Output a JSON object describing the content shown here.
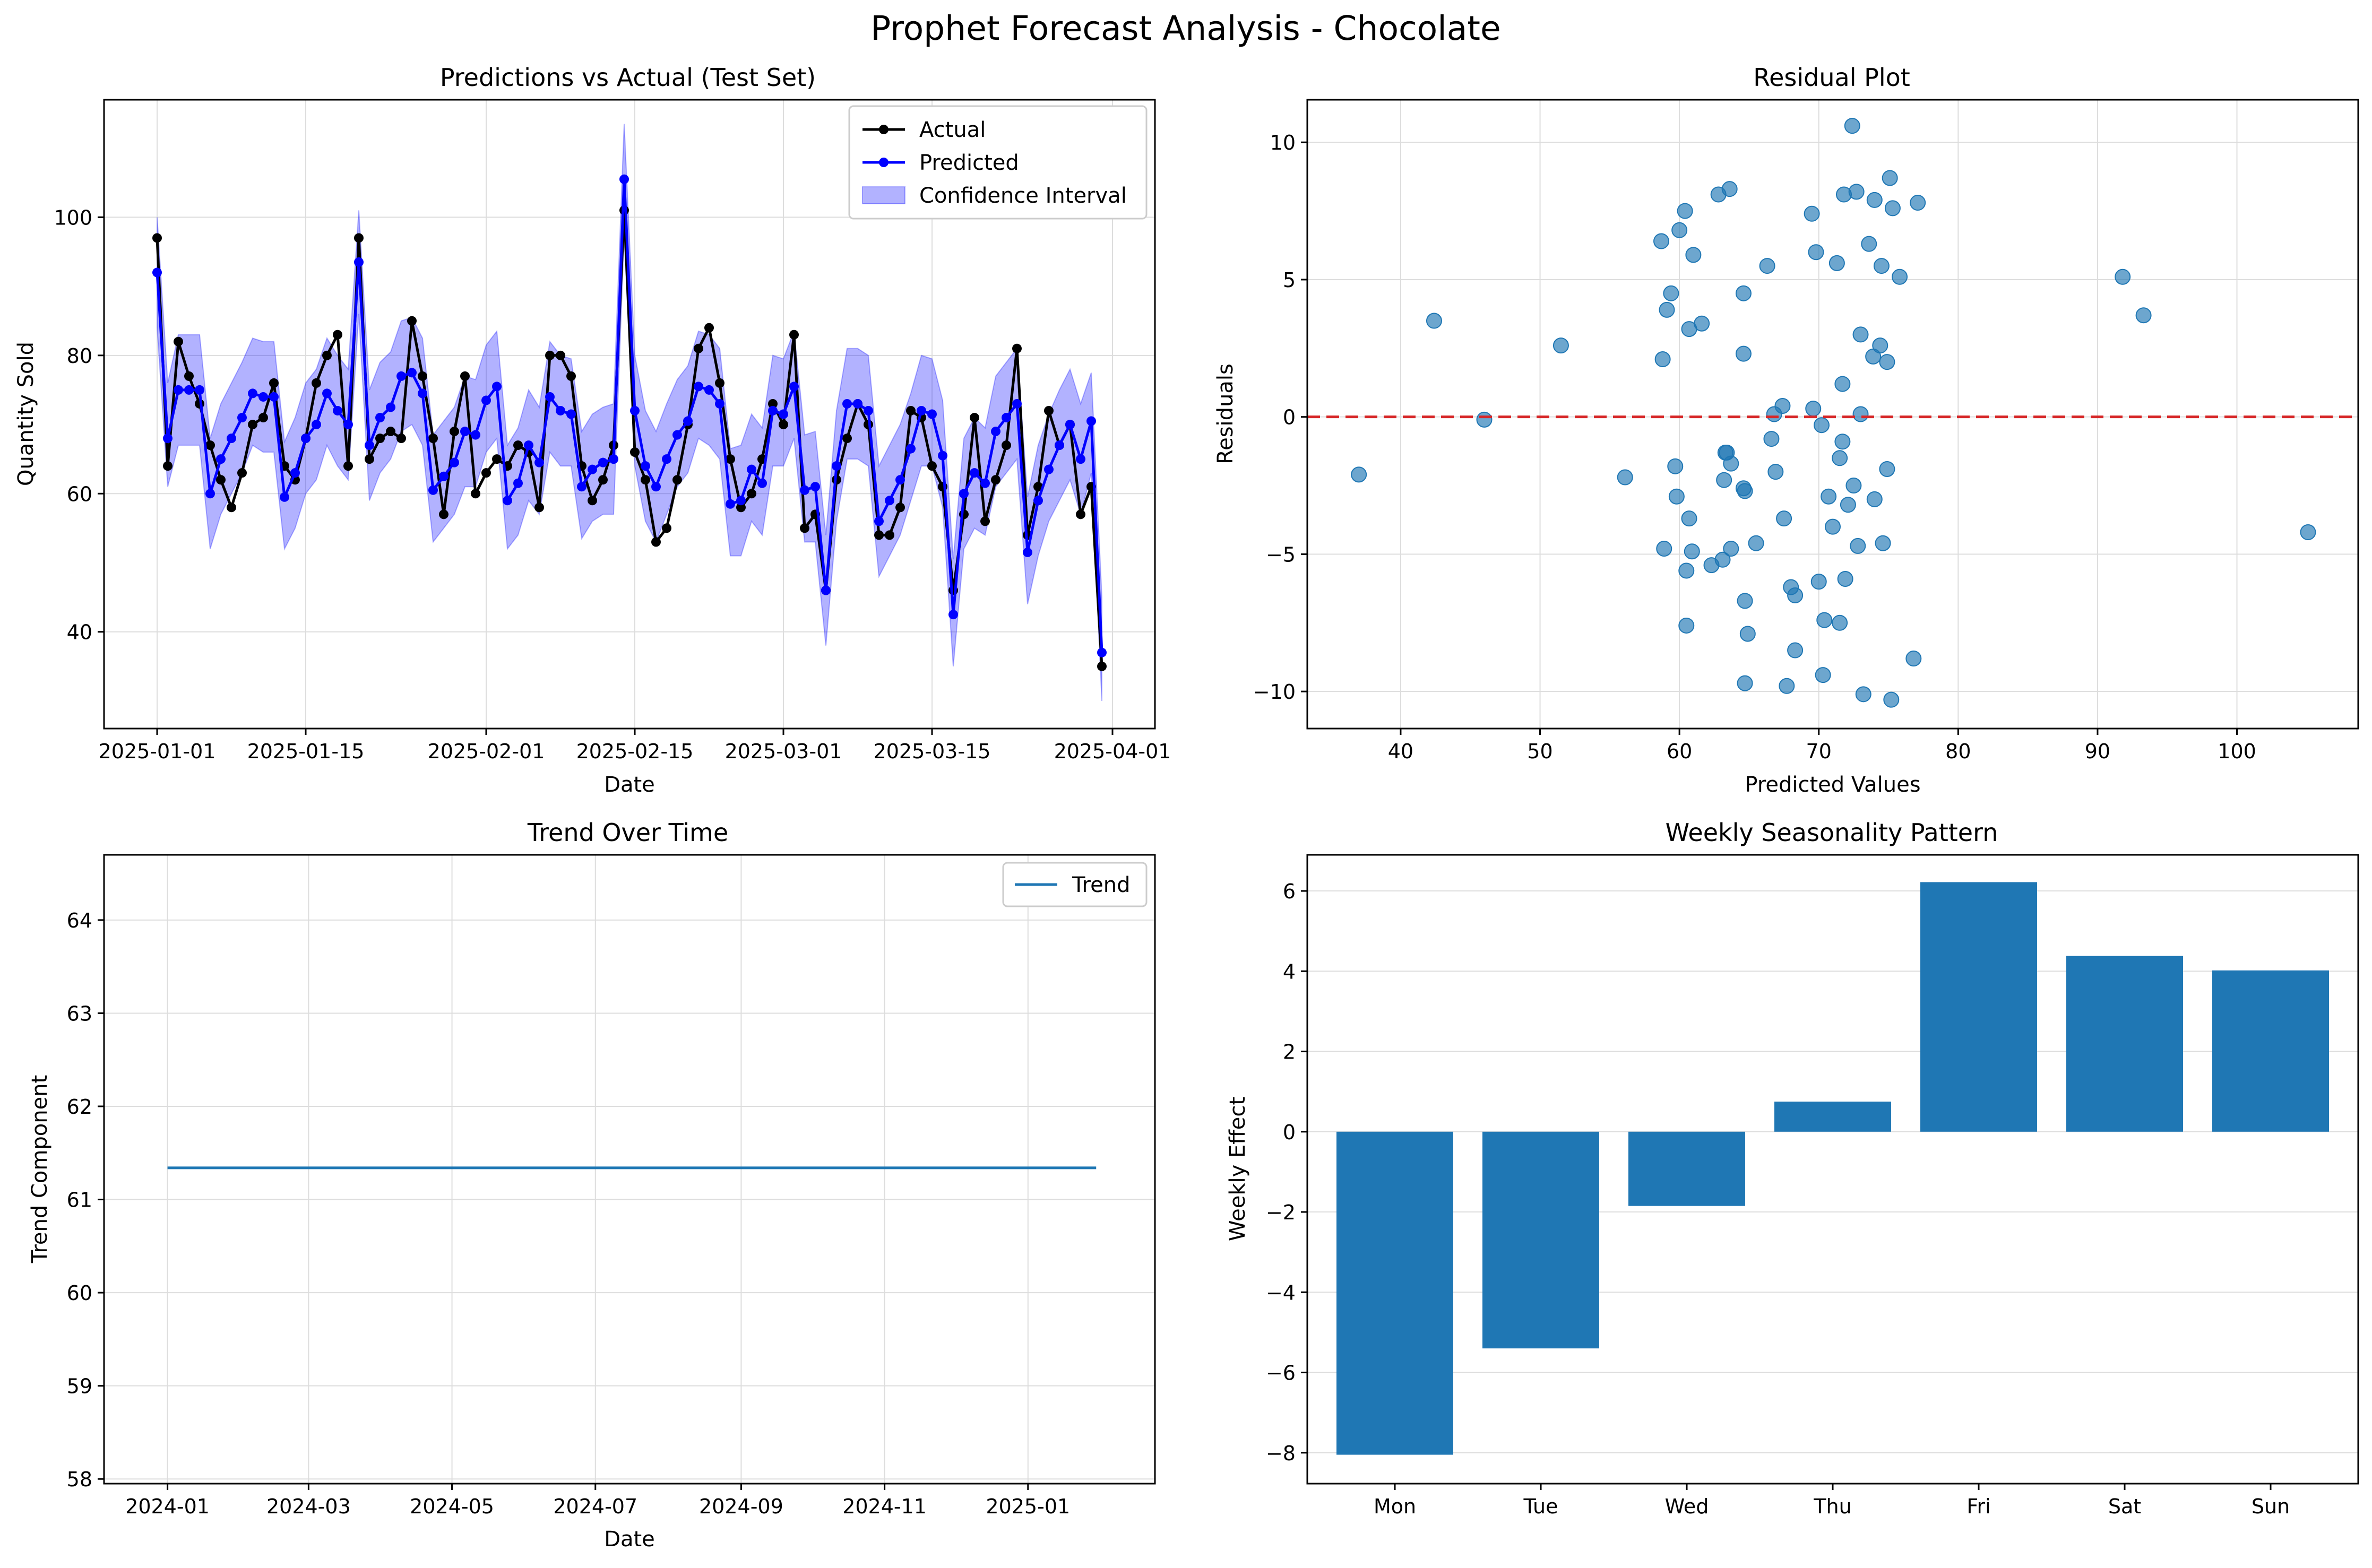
{
  "title": "Prophet Forecast Analysis - Chocolate",
  "colors": {
    "actual": "#000000",
    "predicted": "#0000ff",
    "ci_fill": "#0000ff",
    "scatter": "#1f77b4",
    "zero_line": "#d62728",
    "trend": "#1f77b4",
    "bar": "#1f77b4",
    "grid": "#dddddd"
  },
  "chart_data": [
    {
      "id": "pred",
      "type": "line",
      "title": "Predictions vs Actual (Test Set)",
      "xlabel": "Date",
      "ylabel": "Quantity Sold",
      "x_start": "2025-01-01",
      "x_ticks": [
        "2025-01-01",
        "2025-01-15",
        "2025-02-01",
        "2025-02-15",
        "2025-03-01",
        "2025-03-15",
        "2025-04-01"
      ],
      "y_ticks": [
        40,
        60,
        80,
        100
      ],
      "ylim": [
        26,
        117
      ],
      "xlim": [
        "2024-12-27",
        "2025-04-05"
      ],
      "grid": true,
      "legend": {
        "position": "top-right",
        "entries": [
          "Actual",
          "Predicted",
          "Confidence Interval"
        ]
      },
      "series": [
        {
          "name": "Actual",
          "values": [
            97,
            64,
            82,
            77,
            73,
            67,
            62,
            58,
            63,
            70,
            71,
            76,
            64,
            62,
            68,
            76,
            80,
            83,
            64,
            97,
            65,
            68,
            69,
            68,
            85,
            77,
            68,
            57,
            69,
            77,
            60,
            63,
            65,
            64,
            67,
            66,
            58,
            80,
            80,
            77,
            64,
            59,
            62,
            67,
            101,
            66,
            62,
            53,
            55,
            62,
            70,
            81,
            84,
            76,
            65,
            58,
            60,
            65,
            73,
            70,
            83,
            55,
            57,
            46,
            62,
            68,
            73,
            70,
            54,
            54,
            58,
            72,
            71,
            64,
            61,
            46,
            57,
            71,
            56,
            62,
            67,
            81,
            54,
            61,
            72,
            67,
            70,
            57,
            61,
            35
          ]
        },
        {
          "name": "Predicted",
          "values": [
            92,
            68,
            75,
            75,
            75,
            60,
            65,
            68,
            71,
            74.5,
            74,
            74,
            59.5,
            63,
            68,
            70,
            74.5,
            72,
            70,
            93.5,
            67,
            71,
            72.5,
            77,
            77.5,
            74.5,
            60.5,
            62.5,
            64.5,
            69,
            68.5,
            73.5,
            75.5,
            59,
            61.5,
            67,
            64.5,
            74,
            72,
            71.5,
            61,
            63.5,
            64.5,
            65,
            105.5,
            72,
            64,
            61,
            65,
            68.5,
            70.5,
            75.5,
            75,
            73,
            58.5,
            59,
            63.5,
            61.5,
            72,
            71.5,
            75.5,
            60.5,
            61,
            46,
            64,
            73,
            73,
            72,
            56,
            59,
            62,
            66.5,
            72,
            71.5,
            65.5,
            42.5,
            60,
            63,
            61.5,
            69,
            71,
            73,
            51.5,
            59,
            63.5,
            67,
            70,
            65,
            70.5,
            37
          ]
        },
        {
          "name": "Confidence Interval",
          "lower": [
            84,
            61,
            67,
            67,
            67,
            52,
            57,
            60,
            63,
            67,
            66,
            66,
            52,
            55,
            60,
            62,
            67,
            64,
            62,
            86,
            59,
            63,
            65,
            69,
            70,
            67,
            53,
            55,
            57,
            61,
            61,
            66,
            68,
            52,
            54,
            59,
            57,
            66,
            64,
            64,
            53.5,
            56,
            57,
            57,
            97.5,
            64,
            56,
            53,
            57,
            61,
            63,
            68,
            67,
            65,
            51,
            51,
            56,
            54,
            64,
            64,
            68,
            53,
            53,
            38,
            56,
            65,
            65,
            64,
            48,
            51,
            54,
            59,
            64,
            64,
            58,
            35,
            52,
            55,
            54,
            61,
            63,
            65,
            44,
            51,
            56,
            59,
            62,
            57,
            63,
            30
          ],
          "upper": [
            100,
            76,
            83,
            83,
            83,
            68,
            73,
            76,
            79,
            82.5,
            82,
            82,
            67.5,
            71,
            76,
            78,
            82.5,
            80,
            78,
            101,
            75,
            79,
            80.5,
            85,
            85.5,
            82.5,
            68.5,
            70.5,
            72.5,
            77,
            76.5,
            81.5,
            83.5,
            67,
            69.5,
            75,
            72.5,
            82,
            80,
            79.5,
            69,
            71.5,
            72.5,
            73,
            113.5,
            80,
            72,
            69,
            73,
            76.5,
            78.5,
            83.5,
            83,
            81,
            66.5,
            67,
            71.5,
            69.5,
            80,
            79.5,
            83.5,
            68.5,
            69,
            54,
            72,
            81,
            81,
            80,
            64,
            67,
            70,
            74.5,
            80,
            79.5,
            73.5,
            50.5,
            68,
            71,
            69.5,
            77,
            79,
            81,
            59.5,
            67,
            71.5,
            75,
            78,
            73,
            77.5,
            45
          ]
        }
      ]
    },
    {
      "id": "resid",
      "type": "scatter",
      "title": "Residual Plot",
      "xlabel": "Predicted Values",
      "ylabel": "Residuals",
      "xlim": [
        33.3,
        108.7
      ],
      "ylim": [
        -11.35,
        11.55
      ],
      "x_ticks": [
        40,
        50,
        60,
        70,
        80,
        90,
        100
      ],
      "y_ticks": [
        -10,
        -5,
        0,
        5,
        10
      ],
      "grid": true,
      "reference_line": 0,
      "points": [
        [
          37,
          -2.1
        ],
        [
          42.4,
          3.5
        ],
        [
          46,
          -0.1
        ],
        [
          51.5,
          2.6
        ],
        [
          56.1,
          -2.2
        ],
        [
          58.7,
          6.4
        ],
        [
          58.8,
          2.1
        ],
        [
          58.9,
          -4.8
        ],
        [
          59.1,
          3.9
        ],
        [
          59.4,
          4.5
        ],
        [
          59.7,
          -1.8
        ],
        [
          59.8,
          -2.9
        ],
        [
          60,
          6.8
        ],
        [
          60.4,
          7.5
        ],
        [
          60.5,
          -7.6
        ],
        [
          60.5,
          -5.6
        ],
        [
          60.7,
          -3.7
        ],
        [
          60.7,
          3.2
        ],
        [
          60.9,
          -4.9
        ],
        [
          61,
          5.9
        ],
        [
          61.6,
          3.4
        ],
        [
          62.3,
          -5.4
        ],
        [
          62.8,
          8.1
        ],
        [
          63.1,
          -5.2
        ],
        [
          63.2,
          -2.3
        ],
        [
          63.3,
          -1.3
        ],
        [
          63.4,
          -1.3
        ],
        [
          63.6,
          8.3
        ],
        [
          63.7,
          -1.7
        ],
        [
          63.7,
          -4.8
        ],
        [
          64.6,
          4.5
        ],
        [
          64.6,
          2.3
        ],
        [
          64.6,
          -2.6
        ],
        [
          64.7,
          -2.7
        ],
        [
          64.7,
          -6.7
        ],
        [
          64.7,
          -9.7
        ],
        [
          64.9,
          -7.9
        ],
        [
          65.5,
          -4.6
        ],
        [
          66.3,
          5.5
        ],
        [
          66.6,
          -0.8
        ],
        [
          66.8,
          0.1
        ],
        [
          66.9,
          -2
        ],
        [
          67.4,
          0.4
        ],
        [
          67.5,
          -3.7
        ],
        [
          67.7,
          -9.8
        ],
        [
          68,
          -6.2
        ],
        [
          68.3,
          -8.5
        ],
        [
          68.3,
          -6.5
        ],
        [
          69.5,
          7.4
        ],
        [
          69.6,
          0.3
        ],
        [
          69.8,
          6
        ],
        [
          70,
          -6
        ],
        [
          70.2,
          -0.3
        ],
        [
          70.3,
          -9.4
        ],
        [
          70.4,
          -7.4
        ],
        [
          70.7,
          -2.9
        ],
        [
          71,
          -4
        ],
        [
          71.3,
          5.6
        ],
        [
          71.5,
          -1.5
        ],
        [
          71.5,
          -7.5
        ],
        [
          71.7,
          1.2
        ],
        [
          71.7,
          -0.9
        ],
        [
          71.8,
          8.1
        ],
        [
          71.9,
          -5.9
        ],
        [
          72.1,
          -3.2
        ],
        [
          72.4,
          10.6
        ],
        [
          72.5,
          -2.5
        ],
        [
          72.7,
          8.2
        ],
        [
          72.8,
          -4.7
        ],
        [
          73,
          0.1
        ],
        [
          73,
          3
        ],
        [
          73.2,
          -10.1
        ],
        [
          73.6,
          6.3
        ],
        [
          73.9,
          2.2
        ],
        [
          74,
          7.9
        ],
        [
          74,
          -3
        ],
        [
          74.4,
          2.6
        ],
        [
          74.5,
          5.5
        ],
        [
          74.6,
          -4.6
        ],
        [
          74.9,
          -1.9
        ],
        [
          74.9,
          2
        ],
        [
          75.1,
          8.7
        ],
        [
          75.2,
          -10.3
        ],
        [
          75.3,
          7.6
        ],
        [
          75.8,
          5.1
        ],
        [
          76.8,
          -8.8
        ],
        [
          77.1,
          7.8
        ],
        [
          91.8,
          5.1
        ],
        [
          93.3,
          3.7
        ],
        [
          105.1,
          -4.2
        ]
      ]
    },
    {
      "id": "trend",
      "type": "line",
      "title": "Trend Over Time",
      "xlabel": "Date",
      "ylabel": "Trend Component",
      "x_ticks": [
        "2024-01",
        "2024-03",
        "2024-05",
        "2024-07",
        "2024-09",
        "2024-11",
        "2025-01"
      ],
      "xlim": [
        "2023-12-05",
        "2025-02-24"
      ],
      "x_range": [
        "2024-01-01",
        "2025-01-30"
      ],
      "ylim": [
        57.95,
        64.7
      ],
      "y_ticks": [
        58,
        59,
        60,
        61,
        62,
        63,
        64
      ],
      "grid": true,
      "legend": {
        "position": "top-right",
        "entries": [
          "Trend"
        ]
      },
      "series": [
        {
          "name": "Trend",
          "value": 61.34
        }
      ]
    },
    {
      "id": "weekly",
      "type": "bar",
      "title": "Weekly Seasonality Pattern",
      "xlabel": "",
      "ylabel": "Weekly Effect",
      "categories": [
        "Mon",
        "Tue",
        "Wed",
        "Thu",
        "Fri",
        "Sat",
        "Sun"
      ],
      "values": [
        -8.05,
        -5.4,
        -1.85,
        0.75,
        6.22,
        4.38,
        4.02
      ],
      "ylim": [
        -8.77,
        6.9
      ],
      "y_ticks": [
        -8,
        -6,
        -4,
        -2,
        0,
        2,
        4,
        6
      ],
      "grid": true
    }
  ]
}
